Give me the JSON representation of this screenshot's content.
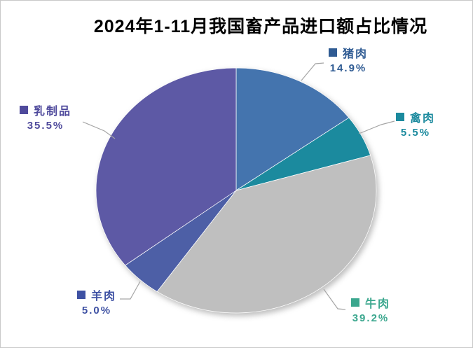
{
  "title": "2024年1-11月我国畜产品进口额占比情况",
  "chart_data": {
    "type": "pie",
    "title": "2024年1-11月我国畜产品进口额占比情况",
    "unit": "%",
    "direction": "clockwise",
    "start_angle_deg": 0,
    "legend_position": "outside-callout-labels",
    "slices": [
      {
        "key": "pork",
        "label": "猪肉",
        "value": 14.9,
        "display": "14.9%",
        "color": "#4474AE",
        "label_color": "#2F5B93"
      },
      {
        "key": "poultry",
        "label": "禽肉",
        "value": 5.5,
        "display": "5.5%",
        "color": "#1B8A9E",
        "label_color": "#1B8A9E"
      },
      {
        "key": "beef",
        "label": "牛肉",
        "value": 39.2,
        "display": "39.2%",
        "color": "#BFBFBF",
        "label_color": "#3BA78E"
      },
      {
        "key": "mutton",
        "label": "羊肉",
        "value": 5.0,
        "display": "5.0%",
        "color": "#4D5FA6",
        "label_color": "#3E51A3"
      },
      {
        "key": "dairy",
        "label": "乳制品",
        "value": 35.5,
        "display": "35.5%",
        "color": "#5D59A5",
        "label_color": "#4F4A9C"
      }
    ]
  }
}
